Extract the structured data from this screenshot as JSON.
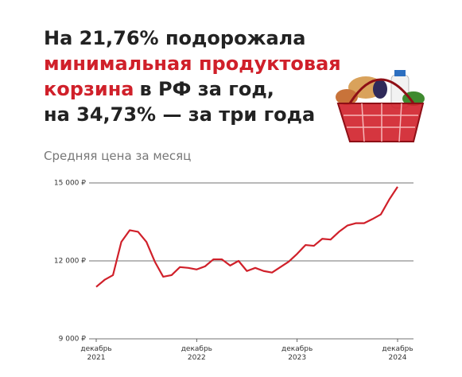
{
  "chart_data": {
    "type": "line",
    "title": [
      [
        {
          "text": "На 21,76% подорожала",
          "color": "#222222"
        }
      ],
      [
        {
          "text": "минимальная продуктовая",
          "color": "#d0202a"
        }
      ],
      [
        {
          "text": "корзина",
          "color": "#d0202a"
        },
        {
          "text": "в РФ за год,",
          "color": "#222222"
        }
      ],
      [
        {
          "text": "на 34,73% — за три года",
          "color": "#222222"
        }
      ]
    ],
    "subtitle": "Средняя цена за месяц",
    "categories": [
      "декабрь 2021",
      null,
      null,
      null,
      null,
      null,
      null,
      null,
      null,
      null,
      null,
      null,
      "декабрь 2022",
      null,
      null,
      null,
      null,
      null,
      null,
      null,
      null,
      null,
      null,
      null,
      "декабрь 2023",
      null,
      null,
      null,
      null,
      null,
      null,
      null,
      null,
      null,
      null,
      null,
      "декабрь 2024"
    ],
    "series": [
      {
        "color": "#d0202a",
        "values": [
          11000,
          11270,
          11450,
          12730,
          13180,
          13120,
          12730,
          11970,
          11390,
          11450,
          11760,
          11730,
          11670,
          11790,
          12060,
          12060,
          11820,
          12000,
          11610,
          11730,
          11610,
          11550,
          11760,
          11970,
          12270,
          12610,
          12580,
          12850,
          12820,
          13120,
          13360,
          13450,
          13450,
          13610,
          13790,
          14360,
          14850
        ]
      }
    ],
    "ylim": [
      9000,
      15000
    ],
    "yticks": [
      {
        "value": 9000,
        "label": "9 000 ₽"
      },
      {
        "value": 12000,
        "label": "12 000 ₽"
      },
      {
        "value": 15000,
        "label": "15 000 ₽"
      }
    ],
    "grid": true
  }
}
